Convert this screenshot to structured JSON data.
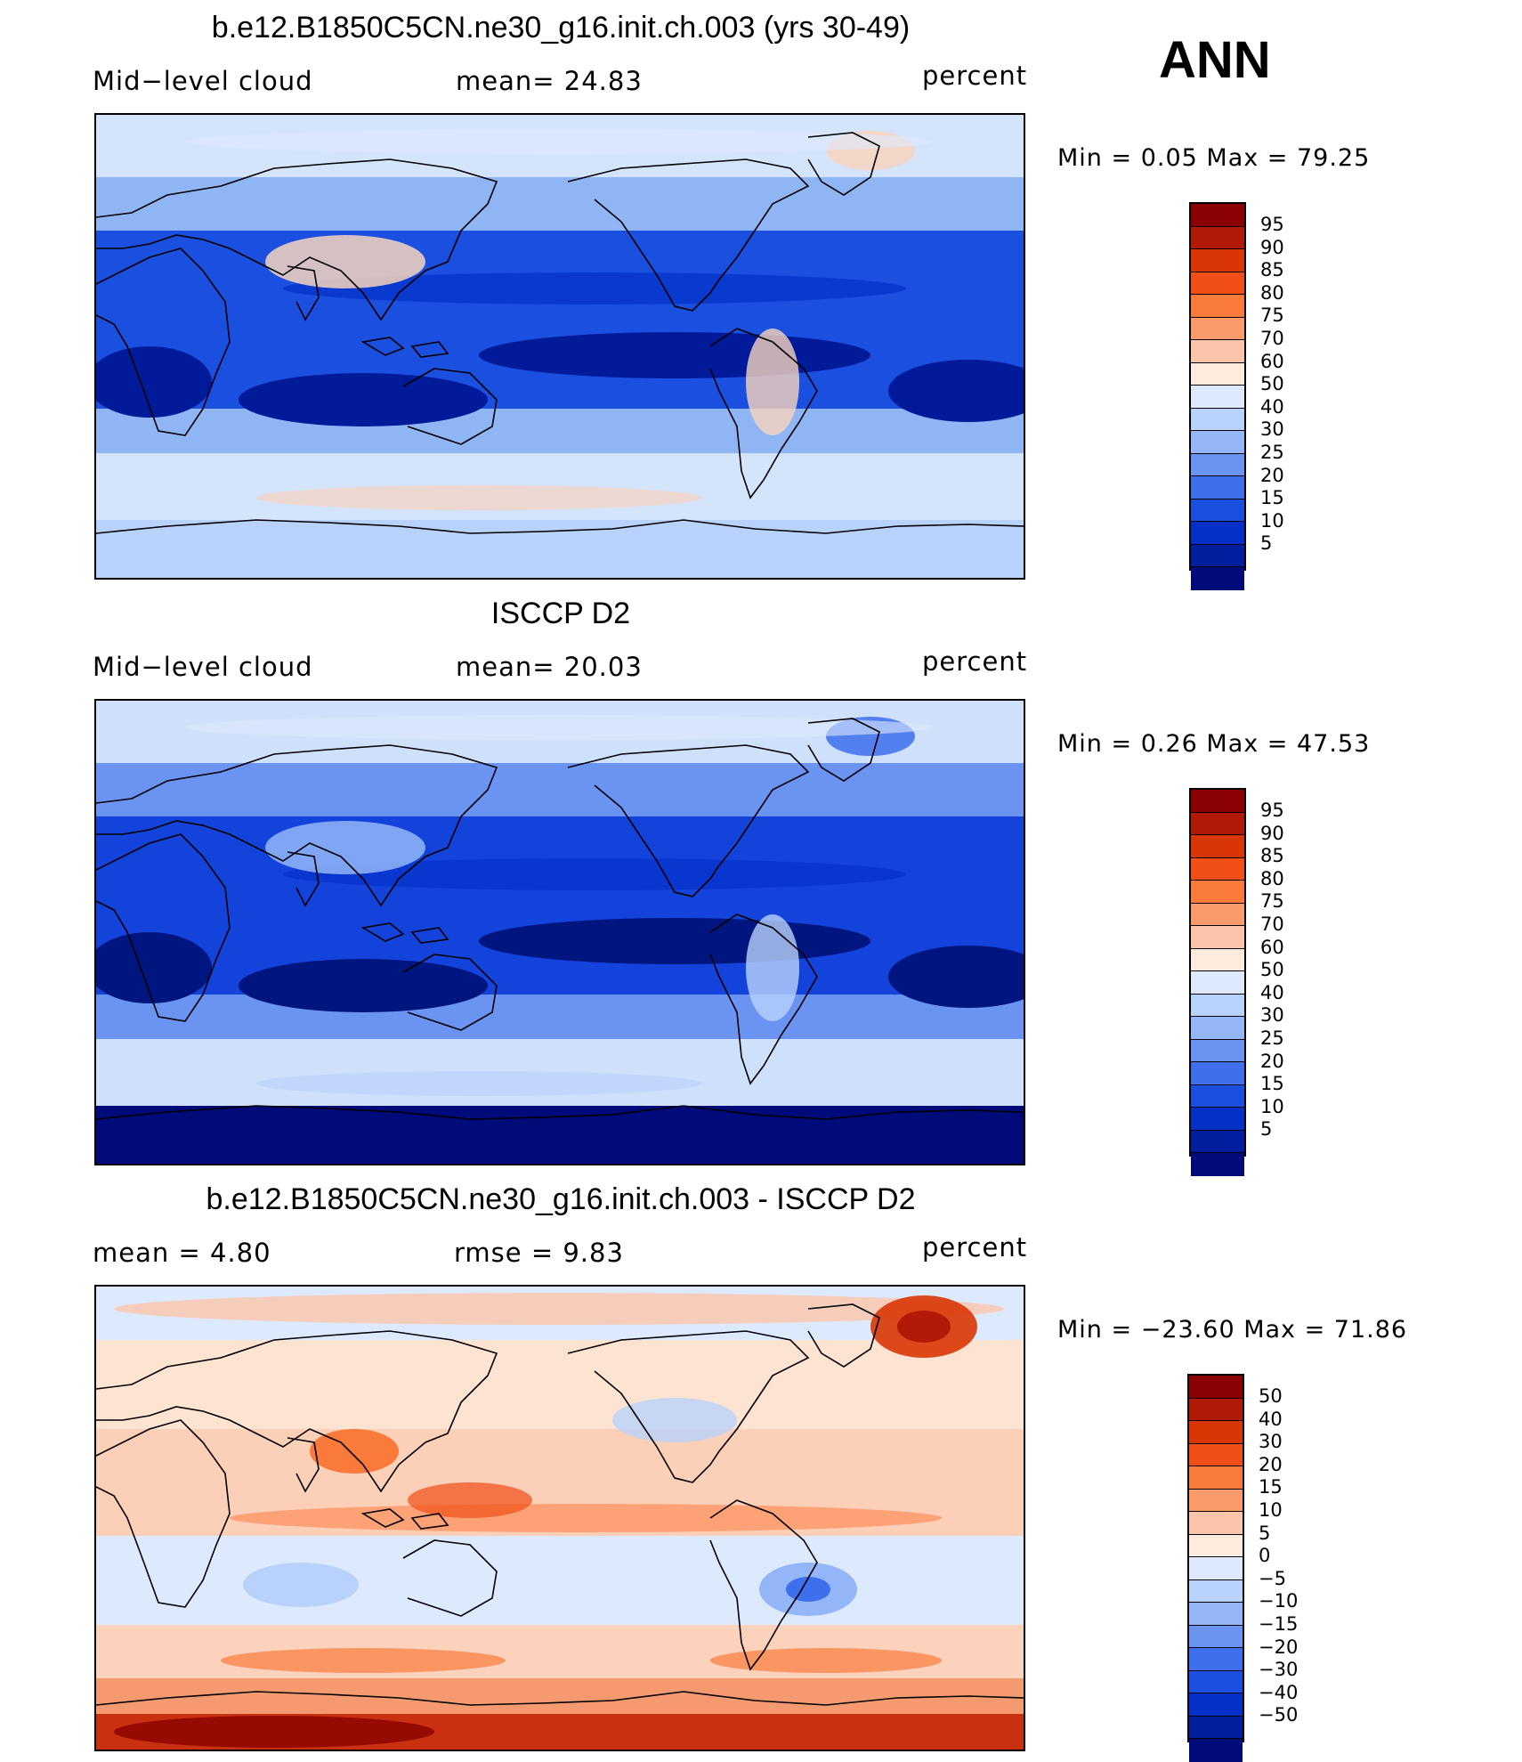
{
  "season": "ANN",
  "panels": [
    {
      "title": "b.e12.B1850C5CN.ne30_g16.init.ch.003 (yrs 30-49)",
      "left": "Mid−level  cloud",
      "mid": "mean=   24.83",
      "units": "percent",
      "minmax": "Min =     0.05  Max =    79.25",
      "map_kind": "model",
      "map_colors": {
        "polar": "#d4e4fb",
        "midlat": "#8fb5f5",
        "subtrop": "#1a4fe0",
        "ocean_dark": "#001a9a",
        "warm": "#f7d3bd"
      },
      "cbar_colors": [
        "#8b0000",
        "#b11a06",
        "#d93606",
        "#f04f17",
        "#f97a3b",
        "#fb9a6a",
        "#fcc5a9",
        "#feebdd",
        "#ddeafd",
        "#b9d2fb",
        "#93b6f8",
        "#6a93f2",
        "#3e6fec",
        "#1a4fe0",
        "#0430c8",
        "#011e9e",
        "#000a78"
      ],
      "cbar_labels": [
        "95",
        "90",
        "85",
        "80",
        "75",
        "70",
        "60",
        "50",
        "40",
        "30",
        "25",
        "20",
        "15",
        "10",
        "5"
      ]
    },
    {
      "title": "ISCCP D2",
      "left": "Mid−level  cloud",
      "mid": "mean=   20.03",
      "units": "percent",
      "minmax": "Min =     0.26  Max =    47.53",
      "map_kind": "obs",
      "map_colors": {
        "polar": "#cfe0fb",
        "midlat": "#6b94f2",
        "subtrop": "#1443dc",
        "ocean_dark": "#00157f",
        "warm": "#b9d2fb"
      },
      "cbar_colors": [
        "#8b0000",
        "#b11a06",
        "#d93606",
        "#f04f17",
        "#f97a3b",
        "#fb9a6a",
        "#fcc5a9",
        "#feebdd",
        "#ddeafd",
        "#b9d2fb",
        "#93b6f8",
        "#6a93f2",
        "#3e6fec",
        "#1a4fe0",
        "#0430c8",
        "#011e9e",
        "#000a78"
      ],
      "cbar_labels": [
        "95",
        "90",
        "85",
        "80",
        "75",
        "70",
        "60",
        "50",
        "40",
        "30",
        "25",
        "20",
        "15",
        "10",
        "5"
      ]
    },
    {
      "title": "b.e12.B1850C5CN.ne30_g16.init.ch.003 - ISCCP D2",
      "left": "mean  =      4.80",
      "mid": "rmse  =      9.83",
      "units": "percent",
      "minmax": "Min = −23.60  Max =    71.86",
      "map_kind": "diff",
      "map_colors": {
        "polar": "#c93010",
        "midlat": "#f89a70",
        "subtrop": "#fde3d2",
        "ocean_dark": "#6a93f2",
        "warm": "#ddeafd"
      },
      "cbar_colors": [
        "#8b0000",
        "#b11a06",
        "#d93606",
        "#f04f17",
        "#f97a3b",
        "#fb9a6a",
        "#fcc5a9",
        "#feebdd",
        "#ddeafd",
        "#b9d2fb",
        "#93b6f8",
        "#6a93f2",
        "#3e6fec",
        "#1a4fe0",
        "#0430c8",
        "#011e9e",
        "#000a78"
      ],
      "cbar_labels": [
        "50",
        "40",
        "30",
        "20",
        "15",
        "10",
        "5",
        "0",
        "−5",
        "−10",
        "−15",
        "−20",
        "−30",
        "−40",
        "−50"
      ]
    }
  ]
}
